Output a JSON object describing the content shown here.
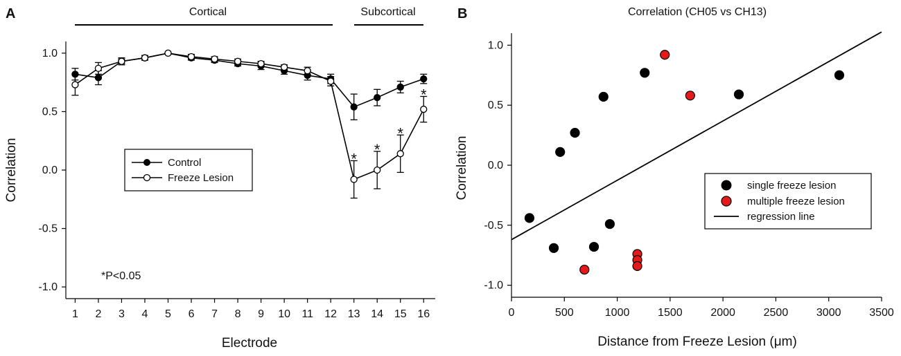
{
  "chart_data": [
    {
      "panel": "A",
      "type": "line",
      "title": "",
      "xlabel": "Electrode",
      "ylabel": "Correlation",
      "xlim": [
        0.6,
        16.5
      ],
      "ylim": [
        -1.1,
        1.1
      ],
      "x": [
        1,
        2,
        3,
        4,
        5,
        6,
        7,
        8,
        9,
        10,
        11,
        12,
        13,
        14,
        15,
        16
      ],
      "xticks": [
        "1",
        "2",
        "3",
        "4",
        "5",
        "6",
        "7",
        "8",
        "9",
        "10",
        "11",
        "12",
        "13",
        "14",
        "15",
        "16"
      ],
      "yticks": [
        {
          "value": 1.0,
          "label": "1.0"
        },
        {
          "value": 0.5,
          "label": "0.5"
        },
        {
          "value": 0.0,
          "label": "0.0"
        },
        {
          "value": -0.5,
          "label": "-0.5"
        },
        {
          "value": -1.0,
          "label": "-1.0"
        }
      ],
      "series": [
        {
          "name": "Control",
          "marker": "filled",
          "values": [
            0.82,
            0.79,
            0.93,
            0.96,
            1.0,
            0.96,
            0.94,
            0.91,
            0.89,
            0.85,
            0.81,
            0.78,
            0.54,
            0.62,
            0.71,
            0.78
          ],
          "errors": [
            0.05,
            0.06,
            0.03,
            0.02,
            0.0,
            0.02,
            0.02,
            0.02,
            0.03,
            0.03,
            0.04,
            0.04,
            0.11,
            0.07,
            0.05,
            0.04
          ]
        },
        {
          "name": "Freeze Lesion",
          "marker": "open",
          "values": [
            0.73,
            0.87,
            0.93,
            0.96,
            1.0,
            0.97,
            0.95,
            0.93,
            0.91,
            0.88,
            0.85,
            0.76,
            -0.08,
            0.0,
            0.14,
            0.52
          ],
          "errors": [
            0.09,
            0.05,
            0.02,
            0.02,
            0.0,
            0.02,
            0.02,
            0.02,
            0.02,
            0.02,
            0.03,
            0.04,
            0.16,
            0.16,
            0.16,
            0.11
          ]
        }
      ],
      "significance": [
        {
          "x": 13,
          "label": "*"
        },
        {
          "x": 14,
          "label": "*"
        },
        {
          "x": 15,
          "label": "*"
        },
        {
          "x": 16,
          "label": "*"
        }
      ],
      "brackets": [
        {
          "label": "Cortical",
          "from": 1,
          "to": 12
        },
        {
          "label": "Subcortical",
          "from": 13,
          "to": 16
        }
      ],
      "annotation": "*P<0.05",
      "legend": [
        "Control",
        "Freeze Lesion"
      ]
    },
    {
      "panel": "B",
      "type": "scatter",
      "title": "Correlation (CH05 vs CH13)",
      "xlabel": "Distance from Freeze Lesion (μm)",
      "ylabel": "Correlation",
      "xlim": [
        0,
        3500
      ],
      "ylim": [
        -1.1,
        1.1
      ],
      "xticks": [
        {
          "value": 0,
          "label": "0"
        },
        {
          "value": 500,
          "label": "500"
        },
        {
          "value": 1000,
          "label": "1000"
        },
        {
          "value": 1500,
          "label": "1500"
        },
        {
          "value": 2000,
          "label": "2000"
        },
        {
          "value": 2500,
          "label": "2500"
        },
        {
          "value": 3000,
          "label": "3000"
        },
        {
          "value": 3500,
          "label": "3500"
        }
      ],
      "yticks": [
        {
          "value": 1.0,
          "label": "1.0"
        },
        {
          "value": 0.5,
          "label": "0.5"
        },
        {
          "value": 0.0,
          "label": "0.0"
        },
        {
          "value": -0.5,
          "label": "-0.5"
        },
        {
          "value": -1.0,
          "label": "-1.0"
        }
      ],
      "series": [
        {
          "name": "single freeze lesion",
          "color": "#000000",
          "points": [
            [
              170,
              -0.44
            ],
            [
              400,
              -0.69
            ],
            [
              460,
              0.11
            ],
            [
              600,
              0.27
            ],
            [
              780,
              -0.68
            ],
            [
              870,
              0.57
            ],
            [
              930,
              -0.49
            ],
            [
              1260,
              0.77
            ],
            [
              2150,
              0.59
            ],
            [
              3100,
              0.75
            ]
          ]
        },
        {
          "name": "multiple freeze lesion",
          "color": "#e31a1c",
          "points": [
            [
              690,
              -0.87
            ],
            [
              1190,
              -0.74
            ],
            [
              1190,
              -0.79
            ],
            [
              1190,
              -0.84
            ],
            [
              1450,
              0.92
            ],
            [
              1690,
              0.58
            ]
          ]
        }
      ],
      "regression": {
        "name": "regression line",
        "x": [
          0,
          3500
        ],
        "y": [
          -0.62,
          1.11
        ]
      },
      "legend": [
        "single freeze lesion",
        "multiple freeze lesion",
        "regression line"
      ]
    }
  ]
}
